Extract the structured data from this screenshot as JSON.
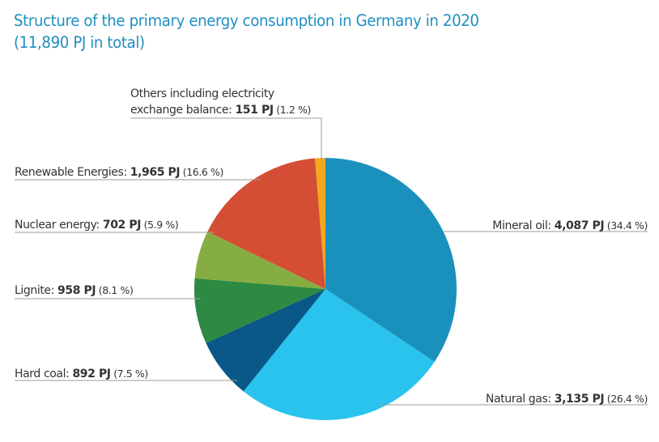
{
  "title": {
    "line1": "Structure of the primary energy consumption in Germany in 2020",
    "line2": "(11,890 PJ in total)"
  },
  "chart_data": {
    "type": "pie",
    "title": "Structure of the primary energy consumption in Germany in 2020 (11,890 PJ in total)",
    "total": 11890,
    "unit": "PJ",
    "start": "top",
    "direction": "clockwise",
    "slices": [
      {
        "name": "Mineral oil",
        "prefix": "Mineral oil: ",
        "value": 4087,
        "value_label": "4,087 PJ",
        "percent": 34.4,
        "percent_label": "(34.4 %)",
        "color": "#1a91bd",
        "label_side": "right"
      },
      {
        "name": "Natural gas",
        "prefix": "Natural gas: ",
        "value": 3135,
        "value_label": "3,135 PJ",
        "percent": 26.4,
        "percent_label": "(26.4 %)",
        "color": "#29c3ee",
        "label_side": "right"
      },
      {
        "name": "Hard coal",
        "prefix": "Hard coal: ",
        "value": 892,
        "value_label": "892 PJ",
        "percent": 7.5,
        "percent_label": "(7.5 %)",
        "color": "#0a5887",
        "label_side": "left"
      },
      {
        "name": "Lignite",
        "prefix": "Lignite: ",
        "value": 958,
        "value_label": "958 PJ",
        "percent": 8.1,
        "percent_label": "(8.1 %)",
        "color": "#2e8942",
        "label_side": "left"
      },
      {
        "name": "Nuclear energy",
        "prefix": "Nuclear energy: ",
        "value": 702,
        "value_label": "702 PJ",
        "percent": 5.9,
        "percent_label": "(5.9 %)",
        "color": "#86ad42",
        "label_side": "left"
      },
      {
        "name": "Renewable Energies",
        "prefix": "Renewable Energies: ",
        "value": 1965,
        "value_label": "1,965 PJ",
        "percent": 16.6,
        "percent_label": "(16.6 %)",
        "color": "#d44e35",
        "label_side": "left"
      },
      {
        "name": "Others including electricity exchange balance",
        "prefix_line1": "Others including electricity",
        "prefix": "exchange balance: ",
        "value": 151,
        "value_label": "151 PJ",
        "percent": 1.2,
        "percent_label": "(1.2 %)",
        "color": "#f2a81d",
        "label_side": "top"
      }
    ]
  }
}
